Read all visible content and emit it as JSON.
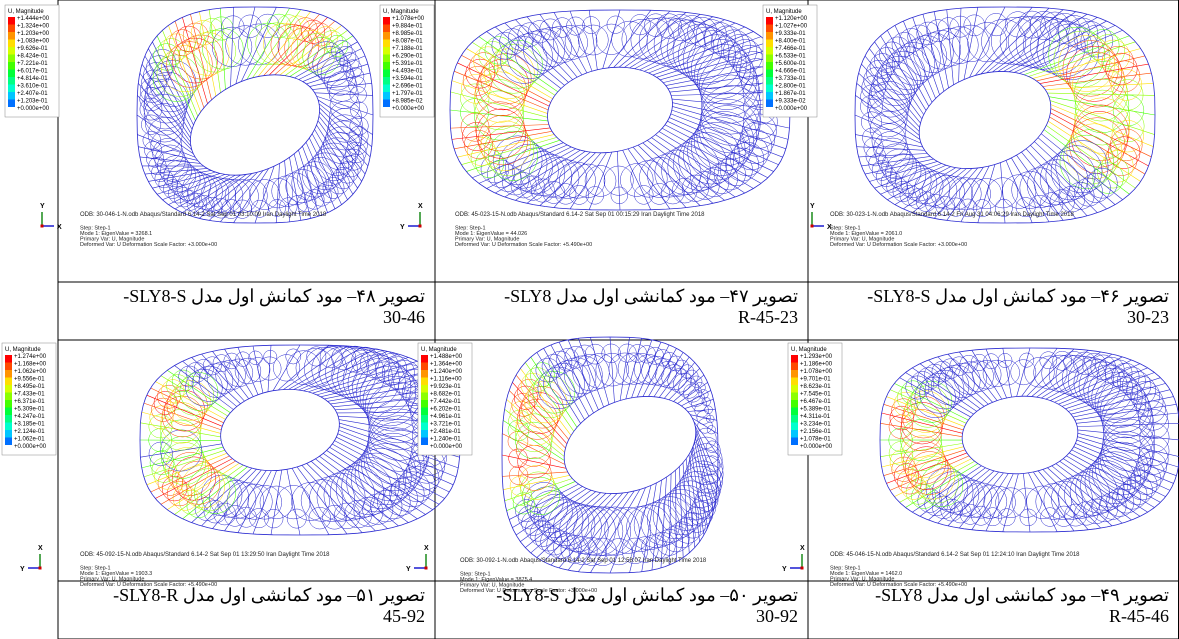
{
  "panels": [
    {
      "legend_title": "U, Magnitude",
      "legend_values": [
        "+1.444e+00",
        "+1.324e+00",
        "+1.203e+00",
        "+1.083e+00",
        "+9.626e-01",
        "+8.424e-01",
        "+7.221e-01",
        "+6.017e-01",
        "+4.814e-01",
        "+3.610e-01",
        "+2.407e-01",
        "+1.203e-01",
        "+0.000e+00"
      ],
      "info": [
        "ODB: 30-046-1-N.odb    Abaqus/Standard 6.14-2    Sat Sep 01 03:10:09 Iran Daylight Time 2018",
        "Step: Step-1",
        "Mode       1: EigenValue =    3268.1",
        "Primary Var: U, Magnitude",
        "Deformed Var: U   Deformation Scale Factor: +3.000e+00"
      ],
      "axis_labels": [
        "Y",
        "X"
      ],
      "caption": [
        "تصویر ۴۸– مود کمانش اول مدل SLY8-S-",
        "30-46"
      ]
    },
    {
      "legend_title": "U, Magnitude",
      "legend_values": [
        "+1.078e+00",
        "+9.884e-01",
        "+8.985e-01",
        "+8.087e-01",
        "+7.188e-01",
        "+6.290e-01",
        "+5.391e-01",
        "+4.493e-01",
        "+3.594e-01",
        "+2.696e-01",
        "+1.797e-01",
        "+8.985e-02",
        "+0.000e+00"
      ],
      "info": [
        "ODB: 45-023-15-N.odb    Abaqus/Standard 6.14-2    Sat Sep 01 00:15:29 Iran Daylight Time 2018",
        "Step: Step-1",
        "Mode       1: EigenValue =    44.026",
        "Primary Var: U, Magnitude",
        "Deformed Var: U   Deformation Scale Factor: +5.490e+00"
      ],
      "axis_labels": [
        "X",
        "Y"
      ],
      "caption": [
        "تصویر ۴۷– مود کمانشی اول مدل SLY8-",
        "R-45-23"
      ]
    },
    {
      "legend_title": "U, Magnitude",
      "legend_values": [
        "+1.120e+00",
        "+1.027e+00",
        "+9.333e-01",
        "+8.400e-01",
        "+7.466e-01",
        "+6.533e-01",
        "+5.600e-01",
        "+4.666e-01",
        "+3.733e-01",
        "+2.800e-01",
        "+1.867e-01",
        "+9.333e-02",
        "+0.000e+00"
      ],
      "info": [
        "ODB: 30-023-1-N.odb    Abaqus/Standard 6.14-2    Fri Aug 31 04:06:29 Iran Daylight Time 2018",
        "Step: Step-1",
        "Mode       1: EigenValue =    2061.0",
        "Primary Var: U, Magnitude",
        "Deformed Var: U   Deformation Scale Factor: +3.000e+00"
      ],
      "axis_labels": [
        "Y",
        "X"
      ],
      "caption": [
        "تصویر ۴۶– مود کمانش اول مدل SLY8-S-",
        "30-23"
      ]
    },
    {
      "legend_title": "U, Magnitude",
      "legend_values": [
        "+1.274e+00",
        "+1.168e+00",
        "+1.062e+00",
        "+9.556e-01",
        "+8.495e-01",
        "+7.433e-01",
        "+6.371e-01",
        "+5.309e-01",
        "+4.247e-01",
        "+3.185e-01",
        "+2.124e-01",
        "+1.062e-01",
        "+0.000e+00"
      ],
      "info": [
        "ODB: 45-092-15-N.odb    Abaqus/Standard 6.14-2    Sat Sep 01 13:29:50 Iran Daylight Time 2018",
        "Step: Step-1",
        "Mode       1: EigenValue =    1903.3",
        "Primary Var: U, Magnitude",
        "Deformed Var: U   Deformation Scale Factor: +5.490e+00"
      ],
      "axis_labels": [
        "X",
        "Y"
      ],
      "caption": [
        "تصویر ۵۱– مود کمانشی اول مدل SLY8-R-",
        "45-92"
      ]
    },
    {
      "legend_title": "U, Magnitude",
      "legend_values": [
        "+1.488e+00",
        "+1.364e+00",
        "+1.240e+00",
        "+1.116e+00",
        "+9.923e-01",
        "+8.682e-01",
        "+7.442e-01",
        "+6.202e-01",
        "+4.961e-01",
        "+3.721e-01",
        "+2.481e-01",
        "+1.240e-01",
        "+0.000e+00"
      ],
      "info": [
        "ODB: 30-092-1-N.odb    Abaqus/Standard 6.14-2    Sat Sep 01 12:58:07 Iran Daylight Time 2018",
        "Step: Step-1",
        "Mode       1: EigenValue =    3875.4",
        "Primary Var: U, Magnitude",
        "Deformed Var: U   Deformation Scale Factor: +3.000e+00"
      ],
      "axis_labels": [
        "X",
        "Y"
      ],
      "caption": [
        "تصویر ۵۰– مود کمانش اول مدل SLY8-S-",
        "30-92"
      ]
    },
    {
      "legend_title": "U, Magnitude",
      "legend_values": [
        "+1.293e+00",
        "+1.186e+00",
        "+1.078e+00",
        "+9.701e-01",
        "+8.623e-01",
        "+7.545e-01",
        "+6.467e-01",
        "+5.389e-01",
        "+4.311e-01",
        "+3.234e-01",
        "+2.156e-01",
        "+1.078e-01",
        "+0.000e+00"
      ],
      "info": [
        "ODB: 45-046-15-N.odb    Abaqus/Standard 6.14-2    Sat Sep 01 12:24:10 Iran Daylight Time 2018",
        "Step: Step-1",
        "Mode       1: EigenValue =    1462.0",
        "Primary Var: U, Magnitude",
        "Deformed Var: U   Deformation Scale Factor: +5.490e+00"
      ],
      "axis_labels": [
        "X",
        "Y"
      ],
      "caption": [
        "تصویر ۴۹– مود کمانشی اول مدل SLY8-",
        "R-45-46"
      ]
    }
  ]
}
